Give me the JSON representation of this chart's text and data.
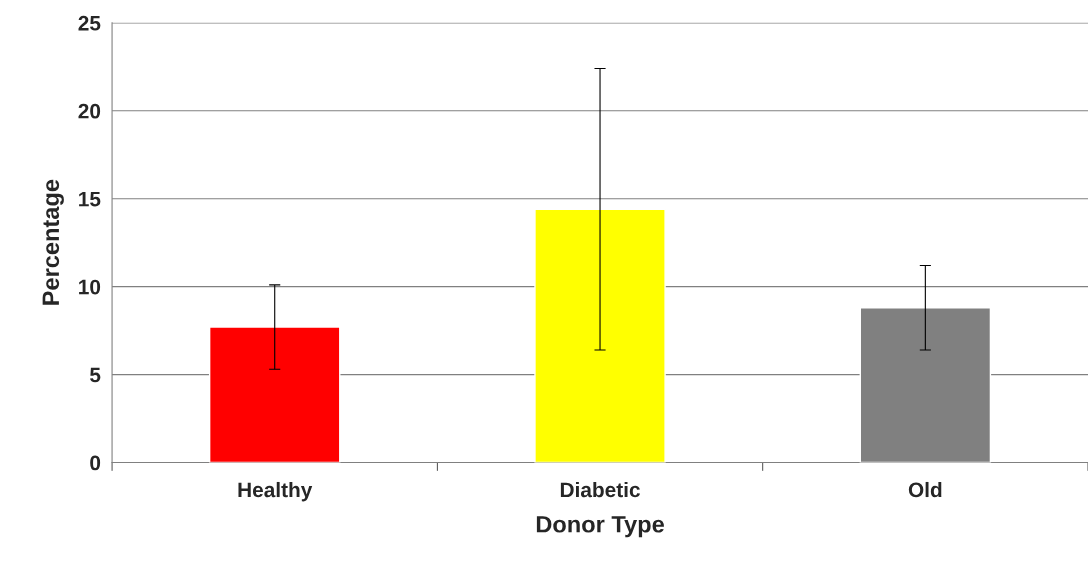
{
  "chart_data": {
    "type": "bar",
    "xlabel": "Donor Type",
    "ylabel": "Percentage",
    "categories": [
      "Healthy",
      "Diabetic",
      "Old"
    ],
    "values": [
      7.7,
      14.4,
      8.8
    ],
    "colors": [
      "#ff0000",
      "#ffff00",
      "#808080"
    ],
    "errors": [
      2.4,
      8.0,
      2.4
    ],
    "ylim": [
      0,
      25
    ],
    "yticks": [
      0,
      5,
      10,
      15,
      20,
      25
    ],
    "grid": "y"
  }
}
